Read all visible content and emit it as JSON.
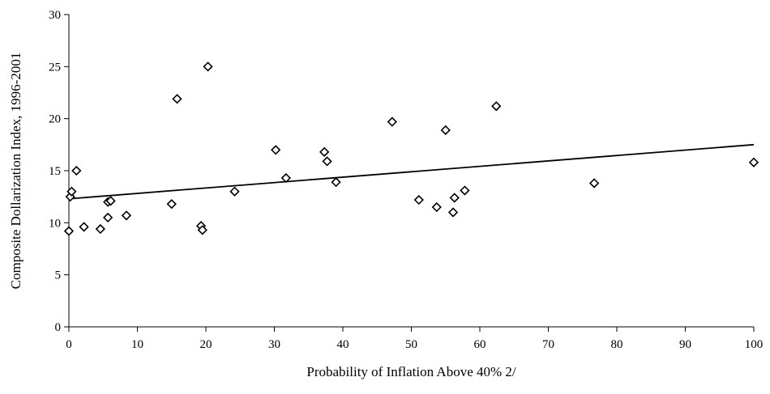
{
  "chart_data": {
    "type": "scatter",
    "xlabel": "Probability of Inflation Above 40%  2/",
    "ylabel": "Composite Dollarization Index, 1996-2001",
    "xlim": [
      0,
      100
    ],
    "ylim": [
      0,
      30
    ],
    "xticks": [
      0,
      10,
      20,
      30,
      40,
      50,
      60,
      70,
      80,
      90,
      100
    ],
    "yticks": [
      0,
      5,
      10,
      15,
      20,
      25,
      30
    ],
    "grid": false,
    "marker": "diamond",
    "series": [
      {
        "points": [
          {
            "x": 0.0,
            "y": 9.2
          },
          {
            "x": 0.2,
            "y": 12.5
          },
          {
            "x": 0.4,
            "y": 13.0
          },
          {
            "x": 1.1,
            "y": 15.0
          },
          {
            "x": 2.2,
            "y": 9.6
          },
          {
            "x": 4.6,
            "y": 9.4
          },
          {
            "x": 5.7,
            "y": 10.5
          },
          {
            "x": 5.7,
            "y": 12.0
          },
          {
            "x": 6.1,
            "y": 12.1
          },
          {
            "x": 8.4,
            "y": 10.7
          },
          {
            "x": 15.0,
            "y": 11.8
          },
          {
            "x": 15.8,
            "y": 21.9
          },
          {
            "x": 19.3,
            "y": 9.7
          },
          {
            "x": 19.5,
            "y": 9.3
          },
          {
            "x": 20.3,
            "y": 25.0
          },
          {
            "x": 24.2,
            "y": 13.0
          },
          {
            "x": 30.2,
            "y": 17.0
          },
          {
            "x": 31.7,
            "y": 14.3
          },
          {
            "x": 37.3,
            "y": 16.8
          },
          {
            "x": 37.7,
            "y": 15.9
          },
          {
            "x": 39.0,
            "y": 13.9
          },
          {
            "x": 47.2,
            "y": 19.7
          },
          {
            "x": 51.1,
            "y": 12.2
          },
          {
            "x": 53.7,
            "y": 11.5
          },
          {
            "x": 55.0,
            "y": 18.9
          },
          {
            "x": 56.1,
            "y": 11.0
          },
          {
            "x": 56.3,
            "y": 12.4
          },
          {
            "x": 57.8,
            "y": 13.1
          },
          {
            "x": 62.4,
            "y": 21.2
          },
          {
            "x": 76.7,
            "y": 13.8
          },
          {
            "x": 100.0,
            "y": 15.8
          }
        ]
      }
    ],
    "trendline": {
      "type": "linear",
      "x": [
        0,
        100
      ],
      "y": [
        12.3,
        17.5
      ]
    }
  }
}
